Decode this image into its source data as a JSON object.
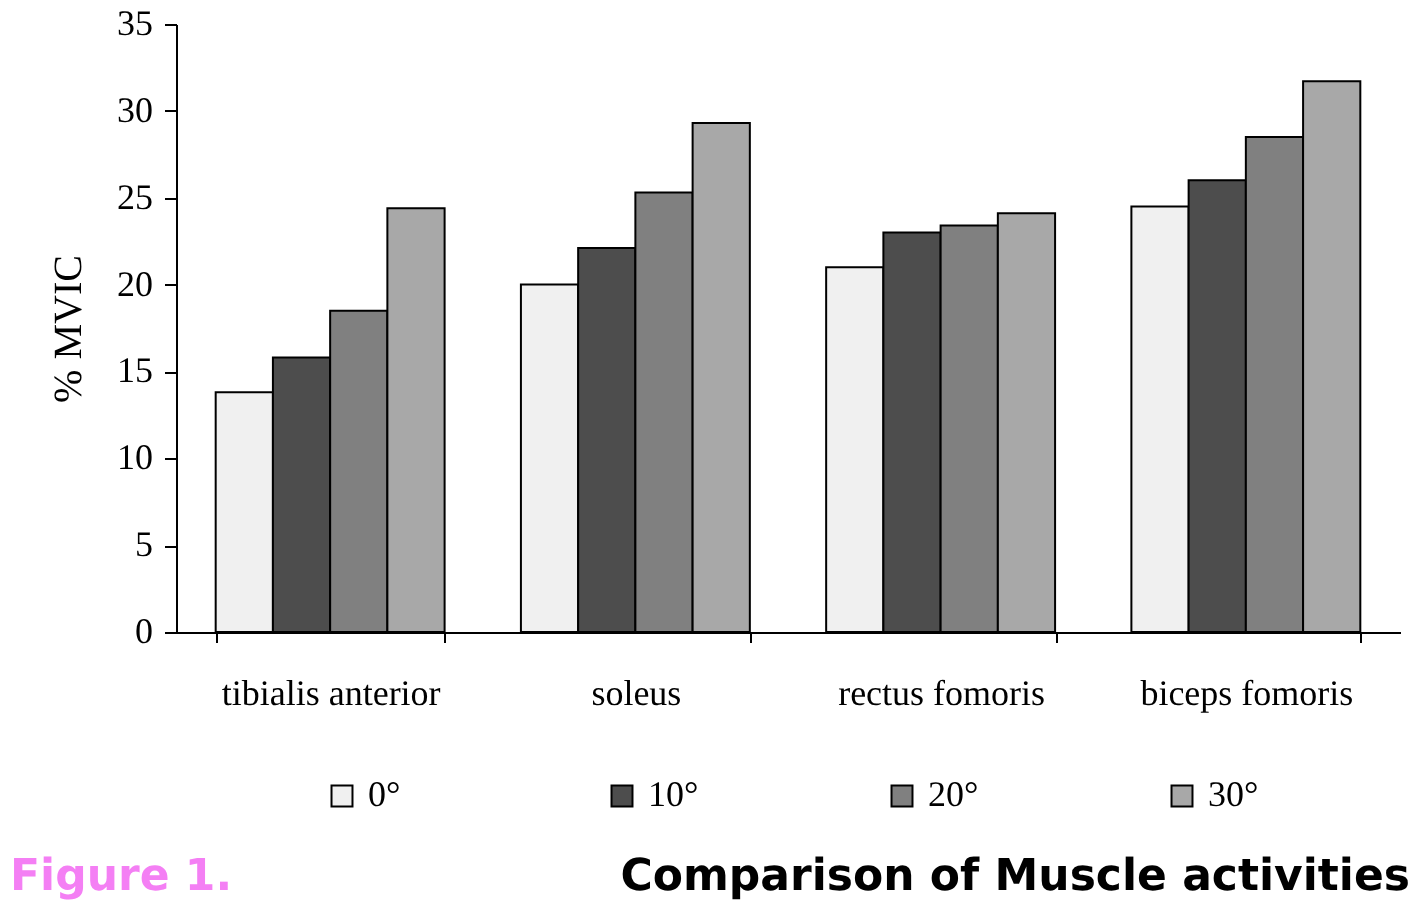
{
  "chart_data": {
    "type": "bar",
    "title": "Comparison of Muscle activities",
    "ylabel": "% MVIC",
    "annotations": [
      "Figure 1."
    ],
    "categories": [
      "tibialis anterior",
      "soleus",
      "rectus fomoris",
      "biceps fomoris"
    ],
    "series": [
      {
        "name": "0°",
        "color": "#f0f0f0",
        "values": [
          13.8,
          20.0,
          21.0,
          24.5
        ]
      },
      {
        "name": "10°",
        "color": "#4d4d4d",
        "values": [
          15.8,
          22.1,
          23.0,
          26.0
        ]
      },
      {
        "name": "20°",
        "color": "#808080",
        "values": [
          18.5,
          25.3,
          23.4,
          28.5
        ]
      },
      {
        "name": "30°",
        "color": "#a8a8a8",
        "values": [
          24.4,
          29.3,
          24.1,
          31.7
        ]
      }
    ],
    "ylim": [
      0,
      35
    ],
    "yticks": [
      0,
      5,
      10,
      15,
      20,
      25,
      30,
      35
    ],
    "grid": false,
    "legend": "bottom"
  }
}
